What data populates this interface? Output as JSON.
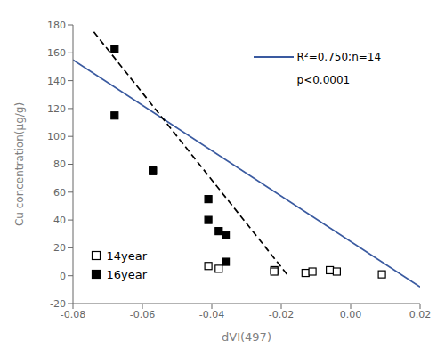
{
  "chart_data": {
    "type": "scatter",
    "xlabel": "dVI(497)",
    "ylabel": "Cu concentration(μg/g)",
    "xlim": [
      -0.08,
      0.02
    ],
    "ylim": [
      -20,
      180
    ],
    "xticks": [
      -0.08,
      -0.06,
      -0.04,
      -0.02,
      {
        "value": 0,
        "label": "0.00"
      },
      0.02
    ],
    "yticks": [
      -20,
      0,
      20,
      40,
      60,
      80,
      100,
      120,
      140,
      160,
      180
    ],
    "grid": false,
    "legend": "lower left",
    "series": [
      {
        "name": "14year",
        "type": "scatter",
        "marker": "square-open",
        "color": "#000000",
        "x": [
          -0.041,
          -0.038,
          -0.022,
          -0.022,
          -0.013,
          -0.011,
          -0.006,
          -0.004,
          0.009
        ],
        "values": [
          7,
          5,
          4,
          3,
          2,
          3,
          4,
          3,
          1
        ]
      },
      {
        "name": "16year",
        "type": "scatter",
        "marker": "square",
        "color": "#000000",
        "x": [
          -0.068,
          -0.068,
          -0.057,
          -0.057,
          -0.041,
          -0.041,
          -0.038,
          -0.036,
          -0.036
        ],
        "values": [
          115,
          163,
          76,
          75,
          55,
          40,
          32,
          10,
          29
        ]
      },
      {
        "type": "line",
        "line_style": "solid",
        "color": "#3a5aa0",
        "x": [
          -0.08,
          0.02
        ],
        "values": [
          155,
          -8
        ]
      },
      {
        "type": "line",
        "line_style": "dashed",
        "color": "#000000",
        "x": [
          -0.074,
          -0.018
        ],
        "values": [
          175,
          0
        ]
      }
    ],
    "annotations": [
      "R²=0.750;n=14",
      "p<0.0001"
    ]
  }
}
